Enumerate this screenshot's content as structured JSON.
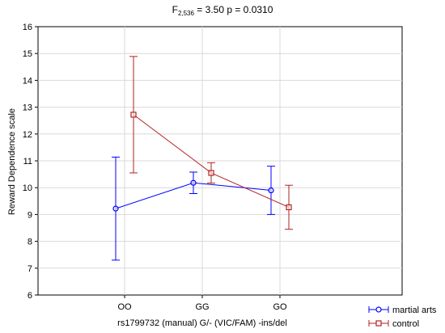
{
  "chart_data": {
    "type": "line",
    "title": {
      "stat_symbol": "F",
      "stat_subscript": "2,536",
      "rest": " = 3.50 p = 0.0310"
    },
    "xlabel": "rs1799732 (manual) G/- (VIC/FAM) -ins/del",
    "ylabel": "Reward Dependence scale",
    "categories": [
      "OO",
      "GG",
      "GO"
    ],
    "ylim": [
      6,
      16
    ],
    "yticks": [
      6,
      7,
      8,
      9,
      10,
      11,
      12,
      13,
      14,
      15,
      16
    ],
    "grid": true,
    "legend_position": "bottom-right",
    "series": [
      {
        "name": "martial arts",
        "color": "#0000ff",
        "marker": "circle",
        "values": [
          9.22,
          10.18,
          9.9
        ],
        "lower": [
          7.3,
          9.78,
          9.0
        ],
        "upper": [
          11.14,
          10.58,
          10.8
        ]
      },
      {
        "name": "control",
        "color": "#b22222",
        "marker": "square",
        "values": [
          12.72,
          10.55,
          9.27
        ],
        "lower": [
          10.55,
          10.17,
          8.45
        ],
        "upper": [
          14.89,
          10.93,
          10.09
        ]
      }
    ]
  }
}
